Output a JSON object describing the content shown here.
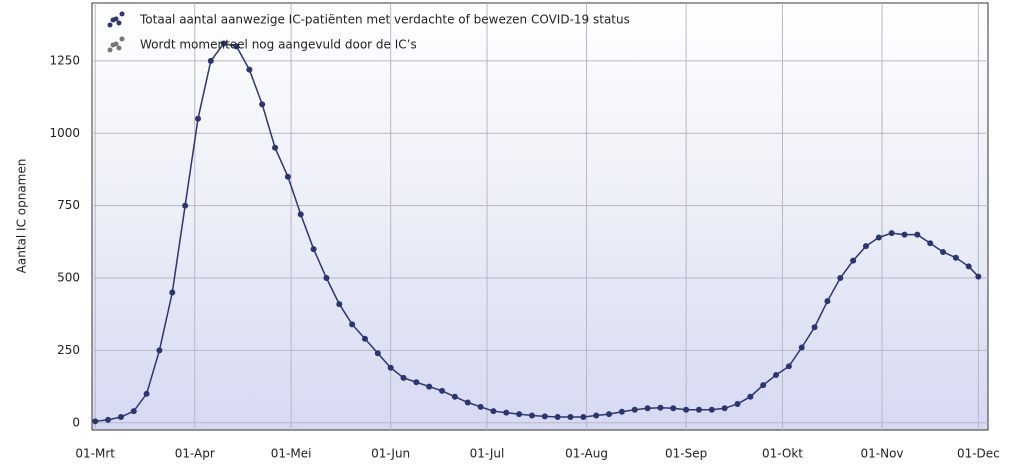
{
  "chart_data": {
    "type": "line",
    "y_label": "Aantal IC opnamen",
    "x": [
      0,
      4,
      8,
      12,
      16,
      20,
      24,
      28,
      32,
      36,
      40,
      44,
      48,
      52,
      56,
      60,
      64,
      68,
      72,
      76,
      80,
      84,
      88,
      92,
      96,
      100,
      104,
      108,
      112,
      116,
      120,
      124,
      128,
      132,
      136,
      140,
      144,
      148,
      152,
      156,
      160,
      164,
      168,
      172,
      176,
      180,
      184,
      188,
      192,
      196,
      200,
      204,
      208,
      212,
      216,
      220,
      224,
      228,
      232,
      236,
      240,
      244,
      248,
      252,
      256,
      260,
      264,
      268,
      272,
      275
    ],
    "series": [
      {
        "name": "Totaal aantal aanwezige IC-patiënten met verdachte of bewezen COVID-19 status",
        "color": "#2b3670",
        "values": [
          5,
          10,
          20,
          40,
          100,
          250,
          450,
          750,
          1050,
          1250,
          1310,
          1300,
          1220,
          1100,
          950,
          850,
          720,
          600,
          500,
          410,
          340,
          290,
          240,
          190,
          155,
          140,
          125,
          110,
          90,
          70,
          55,
          40,
          35,
          30,
          25,
          22,
          20,
          20,
          20,
          25,
          30,
          38,
          45,
          50,
          52,
          50,
          45,
          45,
          45,
          50,
          65,
          90,
          130,
          165,
          195,
          260,
          330,
          420,
          500,
          560,
          610,
          640,
          655,
          650,
          650,
          620,
          590,
          570,
          540,
          505
        ]
      },
      {
        "name": "Wordt momenteel nog aangevuld door de IC’s",
        "color": "#777777"
      }
    ],
    "xlim": [
      -1,
      278
    ],
    "xticks": [
      {
        "value": 0,
        "label": "01-Mrt"
      },
      {
        "value": 31,
        "label": "01-Apr"
      },
      {
        "value": 61,
        "label": "01-Mei"
      },
      {
        "value": 92,
        "label": "01-Jun"
      },
      {
        "value": 122,
        "label": "01-Jul"
      },
      {
        "value": 153,
        "label": "01-Aug"
      },
      {
        "value": 184,
        "label": "01-Sep"
      },
      {
        "value": 214,
        "label": "01-Okt"
      },
      {
        "value": 245,
        "label": "01-Nov"
      },
      {
        "value": 275,
        "label": "01-Dec"
      }
    ],
    "ylim": [
      -25,
      1450
    ],
    "yticks": [
      0,
      250,
      500,
      750,
      1000,
      1250
    ],
    "grid": true
  }
}
